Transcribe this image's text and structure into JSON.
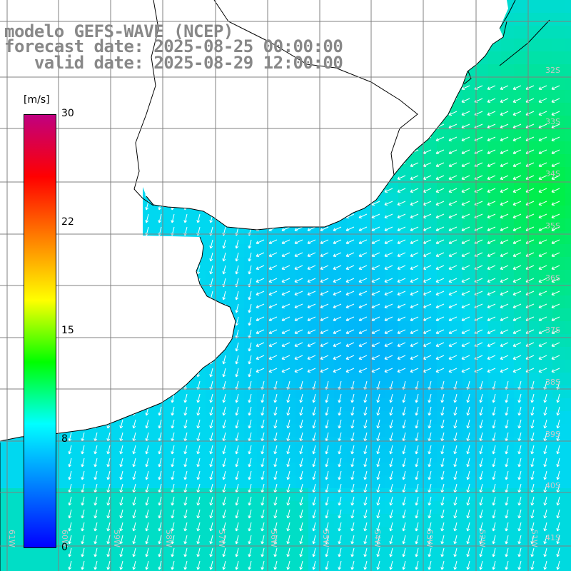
{
  "title": {
    "line1": "modelo GEFS-WAVE (NCEP)",
    "line2": "forecast date: 2025-08-25 00:00:00",
    "line3": "   valid date: 2025-08-29 12:00:00"
  },
  "colorbar": {
    "unit": "[m/s]",
    "ticks": [
      "30",
      "22",
      "15",
      "8",
      "0"
    ],
    "tick_values": [
      30,
      22,
      15,
      8,
      0
    ],
    "stops": [
      "#0000ff",
      "#0080ff",
      "#00ffff",
      "#00ff00",
      "#ffff00",
      "#ff8000",
      "#ff0000",
      "#c00080"
    ]
  },
  "map": {
    "lat_labels": [
      "32S",
      "33S",
      "34S",
      "35S",
      "36S",
      "37S",
      "38S",
      "39S",
      "40S",
      "41S"
    ],
    "lon_labels": [
      "61W",
      "60W",
      "59W",
      "58W",
      "57W",
      "56W",
      "55W",
      "54W",
      "53W",
      "52W",
      "51W"
    ],
    "colors": {
      "land": "#ffffff",
      "coast": "#000000",
      "grid": "#808080",
      "arrow": "#ffffff",
      "label": "#c8c8c8",
      "sea_low": "#00a0ff",
      "sea_mid": "#00d8f0",
      "sea_high": "#00f040"
    }
  }
}
